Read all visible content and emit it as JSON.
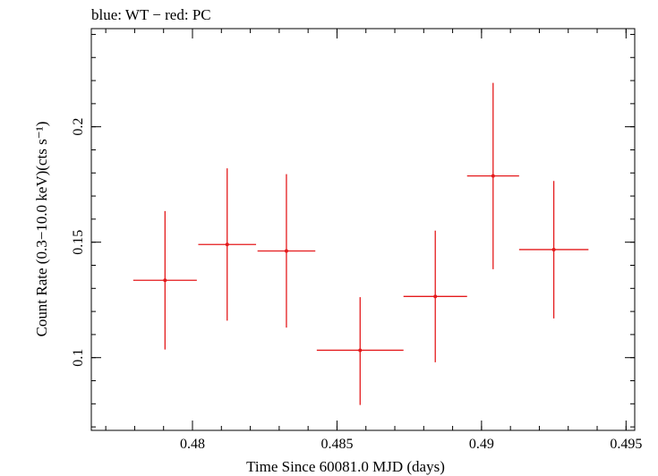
{
  "title": "blue: WT − red: PC",
  "chart_data": {
    "type": "scatter",
    "title": "blue: WT − red: PC",
    "xlabel": "Time Since 60081.0 MJD (days)",
    "ylabel": "Count Rate (0.3−10.0 keV)(cts s⁻¹)",
    "xlim": [
      0.4765,
      0.4953
    ],
    "ylim": [
      0.0685,
      0.2425
    ],
    "xticks": [
      {
        "value": 0.48,
        "label": "0.48"
      },
      {
        "value": 0.485,
        "label": "0.485"
      },
      {
        "value": 0.49,
        "label": "0.49"
      },
      {
        "value": 0.495,
        "label": "0.495"
      }
    ],
    "yticks": [
      {
        "value": 0.1,
        "label": "0.1"
      },
      {
        "value": 0.15,
        "label": "0.15"
      },
      {
        "value": 0.2,
        "label": "0.2"
      }
    ],
    "x_minor_step": 0.001,
    "y_minor_step": 0.01,
    "grid": false,
    "series": [
      {
        "color": "#e41a1c",
        "points": [
          {
            "x": 0.47905,
            "xerr": 0.0011,
            "y": 0.1335,
            "ylo": 0.1035,
            "yhi": 0.1635
          },
          {
            "x": 0.4812,
            "xerr": 0.001,
            "y": 0.149,
            "ylo": 0.116,
            "yhi": 0.182
          },
          {
            "x": 0.48325,
            "xerr": 0.001,
            "y": 0.1462,
            "ylo": 0.113,
            "yhi": 0.1795
          },
          {
            "x": 0.4858,
            "xerr": 0.0015,
            "y": 0.1032,
            "ylo": 0.0795,
            "yhi": 0.1262
          },
          {
            "x": 0.4884,
            "xerr": 0.0011,
            "y": 0.1265,
            "ylo": 0.098,
            "yhi": 0.155
          },
          {
            "x": 0.4904,
            "xerr": 0.0009,
            "y": 0.1787,
            "ylo": 0.1383,
            "yhi": 0.219
          },
          {
            "x": 0.4925,
            "xerr": 0.0012,
            "y": 0.1468,
            "ylo": 0.117,
            "yhi": 0.1765
          }
        ]
      }
    ]
  }
}
